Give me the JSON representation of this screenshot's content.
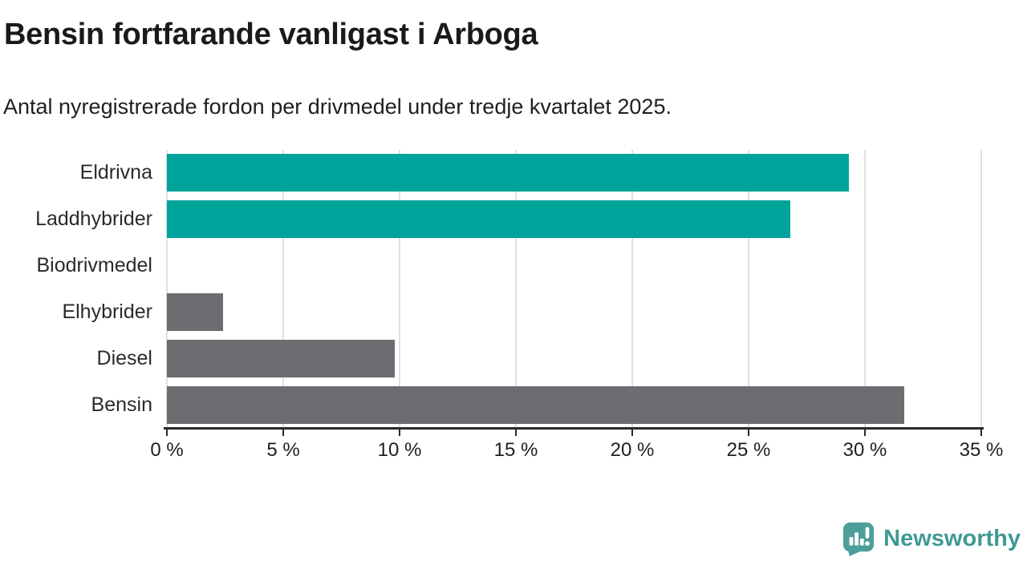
{
  "header": {
    "title": "Bensin fortfarande vanligast i Arboga",
    "subtitle": "Antal nyregistrerade fordon per drivmedel under tredje kvartalet 2025."
  },
  "chart_data": {
    "type": "bar",
    "orientation": "horizontal",
    "categories": [
      "Eldrivna",
      "Laddhybrider",
      "Biodrivmedel",
      "Elhybrider",
      "Diesel",
      "Bensin"
    ],
    "values": [
      29.3,
      26.8,
      0,
      2.4,
      9.8,
      31.7
    ],
    "bar_colors": [
      "#00a49b",
      "#00a49b",
      "#6c6c71",
      "#6c6c71",
      "#6c6c71",
      "#6c6c71"
    ],
    "accent_color": "#00a49b",
    "neutral_color": "#6c6c71",
    "x_ticks": [
      0,
      5,
      10,
      15,
      20,
      25,
      30,
      35
    ],
    "x_tick_labels": [
      "0 %",
      "5 %",
      "10 %",
      "15 %",
      "20 %",
      "25 %",
      "30 %",
      "35 %"
    ],
    "xlim": [
      0,
      35
    ],
    "grid": "vertical-gridlines",
    "gridline_color": "#e0e0e0",
    "axis_color": "#2a2a2a",
    "title": "Bensin fortfarande vanligast i Arboga",
    "xlabel": "",
    "ylabel": ""
  },
  "footer": {
    "brand": "Newsworthy",
    "brand_color": "#3d9a93",
    "logo_color": "#4b9f98"
  }
}
